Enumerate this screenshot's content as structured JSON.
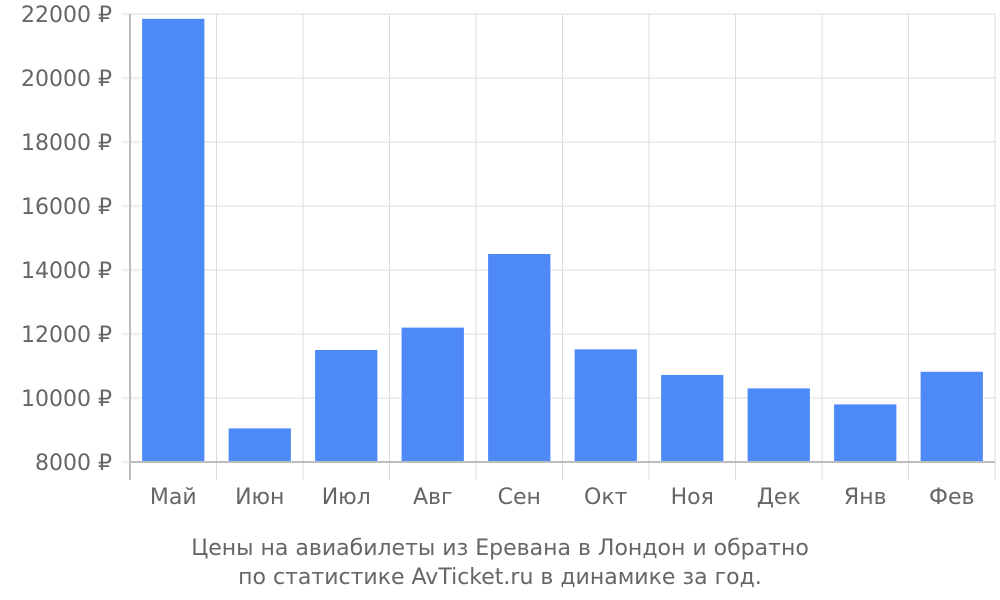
{
  "chart_data": {
    "type": "bar",
    "categories": [
      "Май",
      "Июн",
      "Июл",
      "Авг",
      "Сен",
      "Окт",
      "Ноя",
      "Дек",
      "Янв",
      "Фев"
    ],
    "values": [
      21850,
      9050,
      11500,
      12200,
      14500,
      11520,
      10720,
      10300,
      9800,
      10820
    ],
    "ylim": [
      8000,
      22000
    ],
    "yticks": [
      8000,
      10000,
      12000,
      14000,
      16000,
      18000,
      20000,
      22000
    ],
    "ytick_suffix": " ₽",
    "bar_color": "#4d8af8",
    "grid": true,
    "title": ""
  },
  "caption": {
    "line1": "Цены на авиабилеты из Еревана в Лондон и обратно",
    "line2": "по статистике AvTicket.ru в динамике за год."
  }
}
